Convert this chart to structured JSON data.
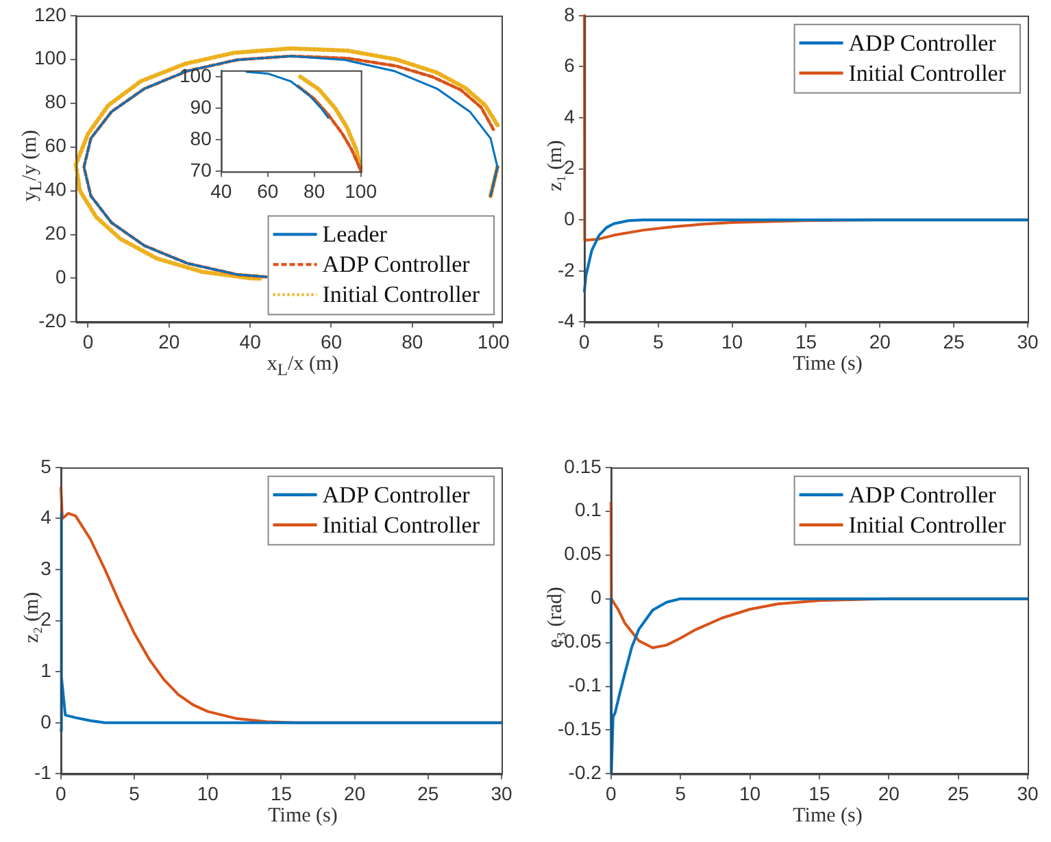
{
  "chart_data": [
    {
      "type": "line",
      "xlabel": "x$_{L}$/x (m)",
      "ylabel": "y$_{L}$/y (m)",
      "xlim": [
        -3,
        102
      ],
      "ylim": [
        -20,
        120
      ],
      "xticks": [
        0,
        20,
        40,
        60,
        80,
        100
      ],
      "yticks": [
        -20,
        0,
        20,
        40,
        60,
        80,
        100,
        120
      ],
      "legend": "bottom right",
      "marker": "none",
      "series": [
        {
          "name": "Leader",
          "color": "#0072bd",
          "line_style": "solid",
          "x": [
            101,
            99.3,
            94.2,
            86.1,
            75.5,
            63.2,
            50,
            36.8,
            24.5,
            13.9,
            5.8,
            0.7,
            -1,
            0.7,
            5.8,
            13.9,
            24.5,
            36.8,
            44,
            70,
            99.3,
            101
          ],
          "values": [
            50.8,
            63.9,
            76.1,
            86.6,
            94.7,
            99.8,
            101.5,
            99.8,
            94.7,
            86.6,
            76.1,
            63.9,
            50.8,
            37.6,
            25.4,
            14.9,
            6.8,
            1.7,
            0.6,
            null,
            37.6,
            50.8
          ]
        },
        {
          "name": "ADP Controller",
          "color": "#d95319",
          "line_style": "dashed",
          "x": [
            100,
            97,
            92,
            85,
            76,
            64,
            50,
            36.8,
            24.5,
            13.9,
            5.8,
            0.7,
            -1,
            0.7,
            5.8,
            13.9,
            24.5,
            36.8,
            44,
            70,
            99.3,
            101
          ],
          "values": [
            68,
            78,
            86,
            92,
            97,
            100.5,
            101.5,
            99.8,
            94.7,
            86.6,
            76.1,
            63.9,
            50.8,
            37.6,
            25.4,
            14.9,
            6.8,
            1.7,
            0.6,
            null,
            37.6,
            50.8
          ]
        },
        {
          "name": "Initial Controller",
          "color": "#edb120",
          "line_style": "dotted",
          "x": [
            101,
            98,
            93,
            86,
            76,
            64,
            50,
            36,
            24,
            13,
            5,
            0,
            -3,
            -2,
            2,
            8,
            17,
            28,
            40,
            43,
            70,
            99.3,
            101
          ],
          "values": [
            70,
            79,
            87,
            94,
            100,
            104,
            105,
            103,
            98,
            90,
            79,
            66,
            52,
            40,
            28,
            18,
            9,
            3,
            0,
            -0.2,
            null,
            37.6,
            50.8
          ]
        }
      ]
    },
    {
      "type": "line",
      "xlim": [
        40,
        100
      ],
      "ylim": [
        70,
        102
      ],
      "xticks": [
        40,
        60,
        80,
        100
      ],
      "yticks": [
        70,
        80,
        90,
        100
      ],
      "marker": "none",
      "series": [
        {
          "color": "#0072bd",
          "line_style": "solid",
          "x": [
            51,
            60,
            70,
            78,
            83,
            86
          ],
          "values": [
            101.5,
            101,
            98.5,
            94,
            90,
            87
          ]
        },
        {
          "color": "#d95319",
          "line_style": "dashed",
          "x": [
            73,
            80,
            86,
            92,
            96,
            99,
            100
          ],
          "values": [
            97,
            93,
            88,
            82,
            77,
            72,
            70
          ]
        },
        {
          "color": "#edb120",
          "line_style": "dotted",
          "x": [
            74,
            82,
            89,
            94,
            98,
            100
          ],
          "values": [
            100,
            96,
            90,
            84,
            77,
            71
          ]
        }
      ]
    },
    {
      "type": "line",
      "xlabel": "Time (s)",
      "ylabel": "z₁ (m)",
      "xlim": [
        0,
        30
      ],
      "ylim": [
        -4,
        8
      ],
      "xticks": [
        0,
        5,
        10,
        15,
        20,
        25,
        30
      ],
      "yticks": [
        -4,
        -2,
        0,
        2,
        4,
        6,
        8
      ],
      "legend": "top right",
      "marker": "none",
      "series": [
        {
          "name": "ADP Controller",
          "color": "#0072bd",
          "x": [
            0,
            0.1,
            0.5,
            1,
            1.5,
            2,
            3,
            4,
            30
          ],
          "values": [
            -2.8,
            -2.2,
            -1.2,
            -0.6,
            -0.3,
            -0.15,
            -0.03,
            0,
            0
          ]
        },
        {
          "name": "Initial Controller",
          "color": "#d95319",
          "x": [
            0,
            0.02,
            1,
            2,
            4,
            6,
            8,
            10,
            15,
            20,
            30
          ],
          "values": [
            8,
            -0.8,
            -0.75,
            -0.6,
            -0.4,
            -0.27,
            -0.17,
            -0.1,
            -0.03,
            0,
            0
          ]
        }
      ]
    },
    {
      "type": "line",
      "xlabel": "Time (s)",
      "ylabel": "z₂ (m)",
      "xlim": [
        0,
        30
      ],
      "ylim": [
        -1,
        5
      ],
      "xticks": [
        0,
        5,
        10,
        15,
        20,
        25,
        30
      ],
      "yticks": [
        -1,
        0,
        1,
        2,
        3,
        4,
        5
      ],
      "legend": "top right",
      "marker": "none",
      "series": [
        {
          "name": "ADP Controller",
          "color": "#0072bd",
          "x": [
            0,
            0.02,
            0.05,
            0.3,
            1,
            2,
            3,
            30
          ],
          "values": [
            -0.15,
            4.1,
            0.9,
            0.15,
            0.1,
            0.04,
            0,
            0
          ]
        },
        {
          "name": "Initial Controller",
          "color": "#d95319",
          "x": [
            0,
            0.1,
            0.5,
            1,
            2,
            3,
            4,
            5,
            6,
            7,
            8,
            9,
            10,
            12,
            14,
            16,
            30
          ],
          "values": [
            4.6,
            4,
            4.1,
            4.05,
            3.6,
            3,
            2.35,
            1.75,
            1.25,
            0.85,
            0.55,
            0.35,
            0.22,
            0.08,
            0.02,
            0,
            0
          ]
        }
      ]
    },
    {
      "type": "line",
      "xlabel": "Time (s)",
      "ylabel": "e₃ (rad)",
      "xlim": [
        0,
        30
      ],
      "ylim": [
        -0.2,
        0.15
      ],
      "xticks": [
        0,
        5,
        10,
        15,
        20,
        25,
        30
      ],
      "yticks": [
        -0.2,
        -0.15,
        -0.1,
        -0.05,
        0,
        0.05,
        0.1,
        0.15
      ],
      "legend": "top right",
      "marker": "none",
      "series": [
        {
          "name": "ADP Controller",
          "color": "#0072bd",
          "x": [
            0,
            0.02,
            0.15,
            0.3,
            0.6,
            1,
            1.5,
            2,
            3,
            4,
            5,
            30
          ],
          "values": [
            0,
            -0.2,
            -0.135,
            -0.13,
            -0.11,
            -0.085,
            -0.055,
            -0.035,
            -0.013,
            -0.004,
            0,
            0
          ]
        },
        {
          "name": "Initial Controller",
          "color": "#d95319",
          "x": [
            0,
            0.02,
            0.5,
            1,
            2,
            3,
            4,
            5,
            6,
            8,
            10,
            12,
            15,
            20,
            30
          ],
          "values": [
            0.11,
            0,
            -0.012,
            -0.028,
            -0.048,
            -0.056,
            -0.053,
            -0.045,
            -0.036,
            -0.022,
            -0.012,
            -0.006,
            -0.002,
            0,
            0
          ]
        }
      ]
    }
  ]
}
